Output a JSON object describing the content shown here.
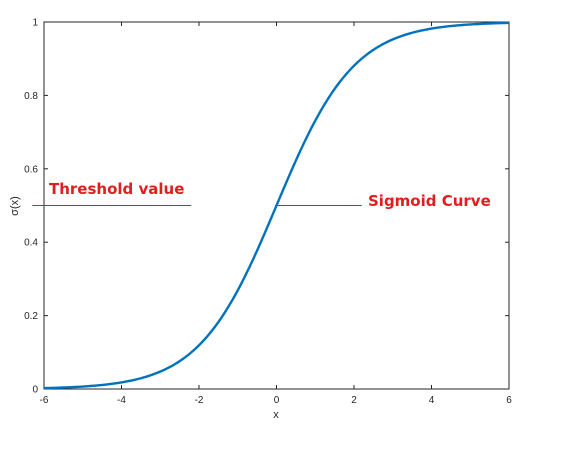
{
  "chart_data": {
    "type": "line",
    "xlabel": "x",
    "ylabel": "σ(x)",
    "xlim": [
      -6,
      6
    ],
    "ylim": [
      0,
      1
    ],
    "xticks": [
      -6,
      -4,
      -2,
      0,
      2,
      4,
      6
    ],
    "yticks": [
      0,
      0.2,
      0.4,
      0.6,
      0.8,
      1
    ],
    "grid": false,
    "series": [
      {
        "function": "sigmoid",
        "color": "#0072bd",
        "x": [
          -6,
          -5.5,
          -5,
          -4.5,
          -4,
          -3.5,
          -3,
          -2.5,
          -2,
          -1.5,
          -1,
          -0.5,
          0,
          0.5,
          1,
          1.5,
          2,
          2.5,
          3,
          3.5,
          4,
          4.5,
          5,
          5.5,
          6
        ],
        "y": [
          0.0025,
          0.0041,
          0.0067,
          0.011,
          0.018,
          0.029,
          0.047,
          0.076,
          0.119,
          0.182,
          0.269,
          0.378,
          0.5,
          0.622,
          0.731,
          0.818,
          0.881,
          0.924,
          0.953,
          0.971,
          0.982,
          0.989,
          0.993,
          0.996,
          0.9975
        ]
      }
    ],
    "annotations": [
      {
        "text": "Threshold value",
        "color": "#e01e1e",
        "line_from": [
          -6.3,
          0.5
        ],
        "line_to": [
          -2.2,
          0.5
        ]
      },
      {
        "text": "Sigmoid Curve",
        "color": "#e01e1e",
        "line_from": [
          0,
          0.5
        ],
        "line_to": [
          2.2,
          0.5
        ]
      }
    ]
  }
}
